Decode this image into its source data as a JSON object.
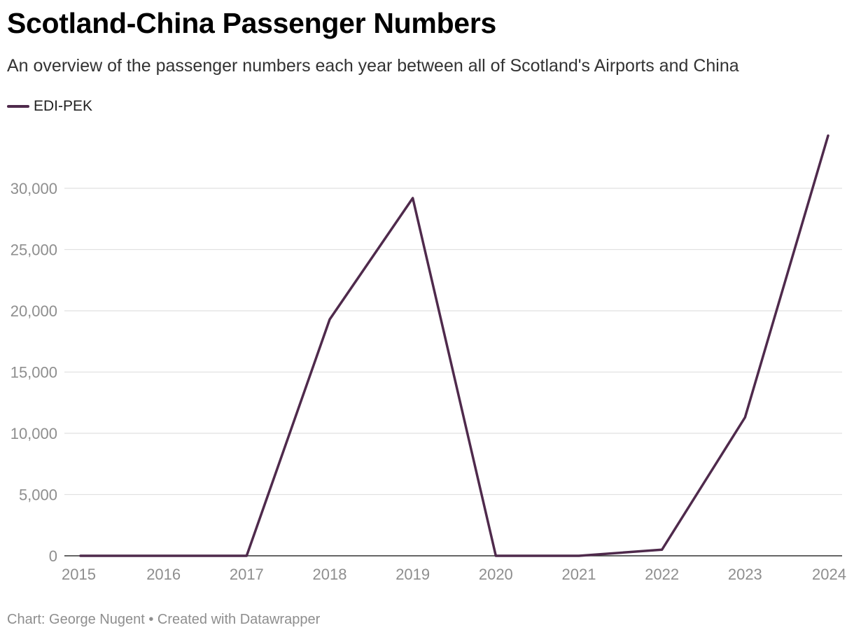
{
  "header": {
    "title": "Scotland-China Passenger Numbers",
    "subtitle": "An overview of the passenger numbers each year between all of Scotland's Airports and China"
  },
  "footer": {
    "text": "Chart: George Nugent • Created with Datawrapper"
  },
  "colors": {
    "series": "#4f2a4c",
    "grid": "#e1e1e1",
    "axis": "#333333",
    "tick_text": "#8e8e8e"
  },
  "chart_data": {
    "type": "line",
    "title": "Scotland-China Passenger Numbers",
    "xlabel": "",
    "ylabel": "",
    "x": [
      "2015",
      "2016",
      "2017",
      "2018",
      "2019",
      "2020",
      "2021",
      "2022",
      "2023",
      "2024"
    ],
    "series": [
      {
        "name": "EDI-PEK",
        "values": [
          0,
          0,
          0,
          19300,
          29200,
          0,
          0,
          500,
          11300,
          34300
        ]
      }
    ],
    "ylim": [
      0,
      35000
    ],
    "yticks": [
      0,
      5000,
      10000,
      15000,
      20000,
      25000,
      30000
    ],
    "ytick_labels": [
      "0",
      "5,000",
      "10,000",
      "15,000",
      "20,000",
      "25,000",
      "30,000"
    ],
    "grid": true,
    "legend_position": "top-left"
  }
}
